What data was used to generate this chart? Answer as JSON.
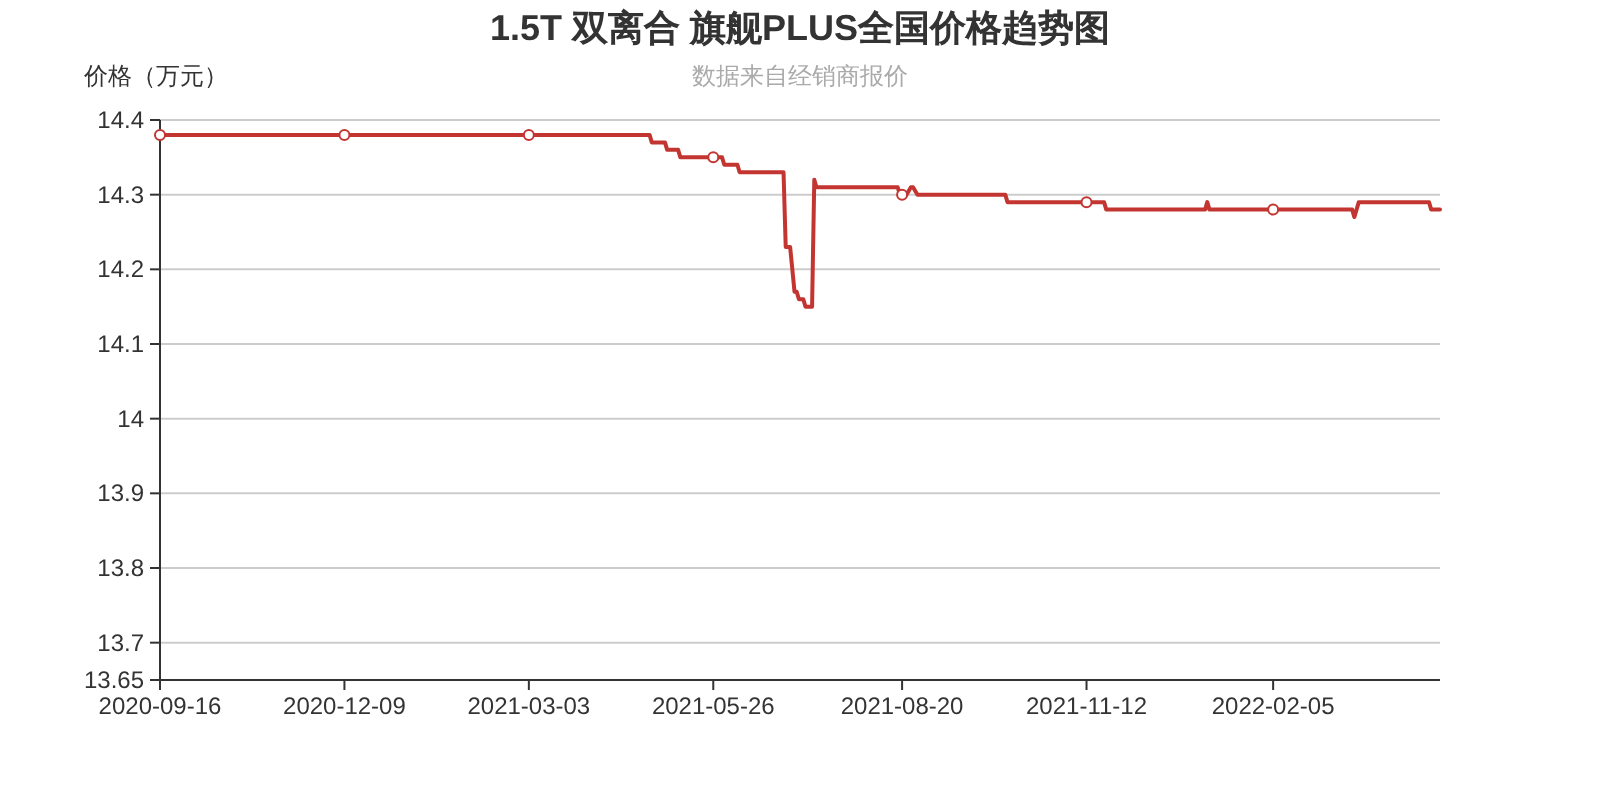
{
  "chart_data": {
    "type": "line",
    "title": "1.5T 双离合 旗舰PLUS全国价格趋势图",
    "subtitle": "数据来自经销商报价",
    "ylabel": "价格（万元）",
    "x": [
      "2020-09-16",
      "2020-12-09",
      "2021-03-03",
      "2021-04-27",
      "2021-04-28",
      "2021-05-04",
      "2021-05-05",
      "2021-05-10",
      "2021-05-11",
      "2021-05-26",
      "2021-05-30",
      "2021-05-31",
      "2021-06-06",
      "2021-06-07",
      "2021-06-27",
      "2021-06-28",
      "2021-06-30",
      "2021-07-02",
      "2021-07-03",
      "2021-07-04",
      "2021-07-06",
      "2021-07-07",
      "2021-07-10",
      "2021-07-11",
      "2021-07-12",
      "2021-08-18",
      "2021-08-19",
      "2021-08-20",
      "2021-08-22",
      "2021-08-24",
      "2021-08-25",
      "2021-08-27",
      "2021-10-06",
      "2021-10-07",
      "2021-11-12",
      "2021-11-20",
      "2021-11-21",
      "2022-01-05",
      "2022-01-06",
      "2022-01-07",
      "2022-02-05",
      "2022-03-13",
      "2022-03-14",
      "2022-03-16",
      "2022-04-17",
      "2022-04-18",
      "2022-04-22"
    ],
    "series": [
      {
        "color": "#c23531",
        "marker": "none",
        "values": [
          14.38,
          14.38,
          14.38,
          14.38,
          14.37,
          14.37,
          14.36,
          14.36,
          14.35,
          14.35,
          14.35,
          14.34,
          14.34,
          14.33,
          14.33,
          14.23,
          14.23,
          14.17,
          14.17,
          14.16,
          14.16,
          14.15,
          14.15,
          14.32,
          14.31,
          14.31,
          14.3,
          14.3,
          14.3,
          14.31,
          14.31,
          14.3,
          14.3,
          14.29,
          14.29,
          14.29,
          14.28,
          14.28,
          14.29,
          14.28,
          14.28,
          14.28,
          14.27,
          14.29,
          14.29,
          14.28,
          14.28
        ]
      },
      {
        "type": "scatter",
        "color": "#c23531",
        "marker": "circle",
        "x": [
          "2020-09-16",
          "2020-12-09",
          "2021-03-03",
          "2021-05-26",
          "2021-08-20",
          "2021-11-12",
          "2022-02-05"
        ],
        "values": [
          14.38,
          14.38,
          14.38,
          14.35,
          14.3,
          14.29,
          14.28
        ]
      }
    ],
    "xlim": [
      "2020-09-16",
      "2022-04-22"
    ],
    "xticks": [
      "2020-09-16",
      "2020-12-09",
      "2021-03-03",
      "2021-05-26",
      "2021-08-20",
      "2021-11-12",
      "2022-02-05"
    ],
    "ylim": [
      13.65,
      14.4
    ],
    "yticks": [
      13.65,
      13.7,
      13.8,
      13.9,
      14,
      14.1,
      14.2,
      14.3,
      14.4
    ],
    "grid": "y"
  }
}
